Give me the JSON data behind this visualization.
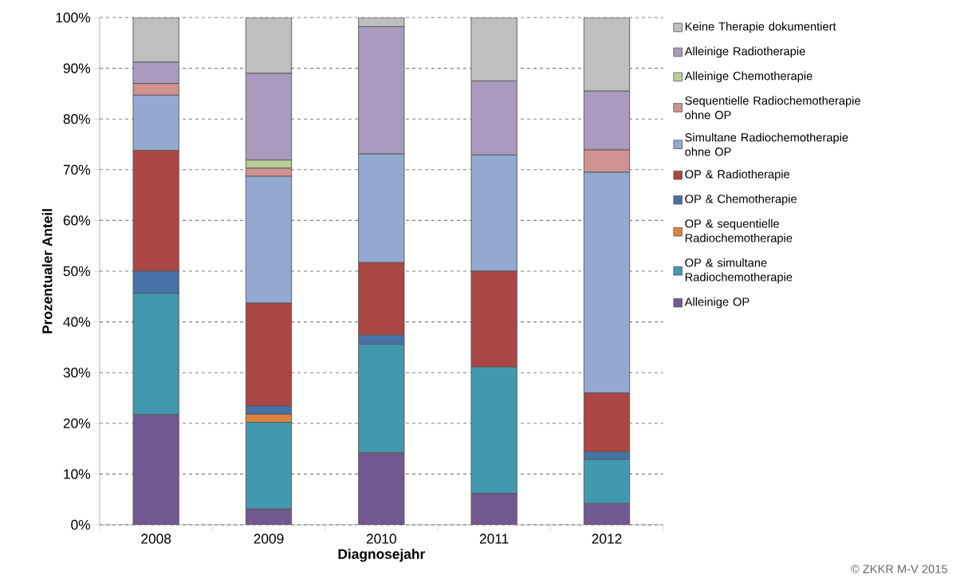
{
  "chart_data": {
    "type": "bar",
    "stacked": true,
    "ylabel": "Prozentualer Anteil",
    "xlabel": "Diagnosejahr",
    "categories": [
      "2008",
      "2009",
      "2010",
      "2011",
      "2012"
    ],
    "series": [
      {
        "name": "Alleinige OP",
        "color": "#71588f",
        "values": [
          21.7,
          3.1,
          14.2,
          6.2,
          4.2
        ]
      },
      {
        "name": "OP & simultane Radiochemotherapie",
        "color": "#4198af",
        "values": [
          23.9,
          17.1,
          21.4,
          24.9,
          8.7
        ]
      },
      {
        "name": "OP & sequentielle Radiochemotherapie",
        "color": "#db843d",
        "values": [
          0,
          1.6,
          0,
          0,
          0
        ]
      },
      {
        "name": "OP & Chemotherapie",
        "color": "#4572a7",
        "values": [
          4.4,
          1.6,
          1.8,
          0,
          1.5
        ]
      },
      {
        "name": "OP & Radiotherapie",
        "color": "#aa4643",
        "values": [
          23.8,
          20.3,
          14.3,
          18.9,
          11.6
        ]
      },
      {
        "name": "Simultane Radiochemotherapie ohne OP",
        "color": "#93a9cf",
        "values": [
          10.9,
          25.0,
          21.4,
          22.9,
          43.5
        ]
      },
      {
        "name": "Sequentielle Radiochemotherapie ohne OP",
        "color": "#d19392",
        "values": [
          2.3,
          1.6,
          0,
          0,
          4.4
        ]
      },
      {
        "name": "Alleinige Chemotherapie",
        "color": "#b9cd96",
        "values": [
          0,
          1.6,
          0,
          0,
          0
        ]
      },
      {
        "name": "Alleinige Radiotherapie",
        "color": "#a99bbd",
        "values": [
          4.2,
          17.1,
          25.1,
          14.6,
          11.6
        ]
      },
      {
        "name": "Keine Therapie dokumentiert",
        "color": "#bfbfbf",
        "values": [
          8.8,
          11.0,
          1.8,
          12.5,
          14.5
        ]
      }
    ],
    "ylim": [
      0,
      100
    ],
    "yticks": [
      {
        "value": 0,
        "label": "0%"
      },
      {
        "value": 10,
        "label": "10%"
      },
      {
        "value": 20,
        "label": "20%"
      },
      {
        "value": 30,
        "label": "30%"
      },
      {
        "value": 40,
        "label": "40%"
      },
      {
        "value": 50,
        "label": "50%"
      },
      {
        "value": 60,
        "label": "60%"
      },
      {
        "value": 70,
        "label": "70%"
      },
      {
        "value": 80,
        "label": "80%"
      },
      {
        "value": 90,
        "label": "90%"
      },
      {
        "value": 100,
        "label": "100%"
      }
    ],
    "grid": "y",
    "legend": "right",
    "annotations": [
      "© ZKKR M-V 2015"
    ]
  }
}
